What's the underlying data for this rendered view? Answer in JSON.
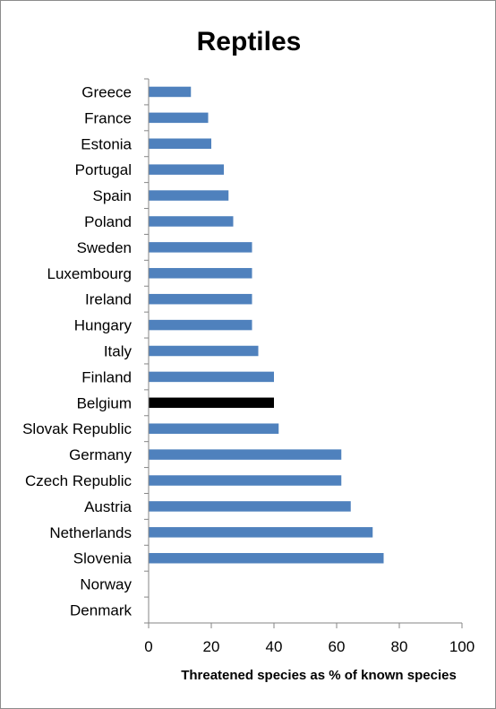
{
  "chart_data": {
    "type": "bar",
    "orientation": "horizontal",
    "title": "Reptiles",
    "xlabel": "Threatened species as % of known species",
    "ylabel": "",
    "xlim": [
      0,
      100
    ],
    "xticks": [
      "0",
      "20",
      "40",
      "60",
      "80",
      "100"
    ],
    "grid": false,
    "legend": "none",
    "categories": [
      "Greece",
      "France",
      "Estonia",
      "Portugal",
      "Spain",
      "Poland",
      "Sweden",
      "Luxembourg",
      "Ireland",
      "Hungary",
      "Italy",
      "Finland",
      "Belgium",
      "Slovak Republic",
      "Germany",
      "Czech Republic",
      "Austria",
      "Netherlands",
      "Slovenia",
      "Norway",
      "Denmark"
    ],
    "values": [
      13.5,
      19,
      20,
      24,
      25.5,
      27,
      33,
      33,
      33,
      33,
      35,
      40,
      40,
      41.5,
      61.5,
      61.5,
      64.5,
      71.5,
      75,
      null,
      null
    ],
    "highlight": "Belgium",
    "colors": {
      "bar": "#4f81bd",
      "highlight": "#000000",
      "axis": "#868686",
      "frame": "#8c8c8c"
    }
  }
}
